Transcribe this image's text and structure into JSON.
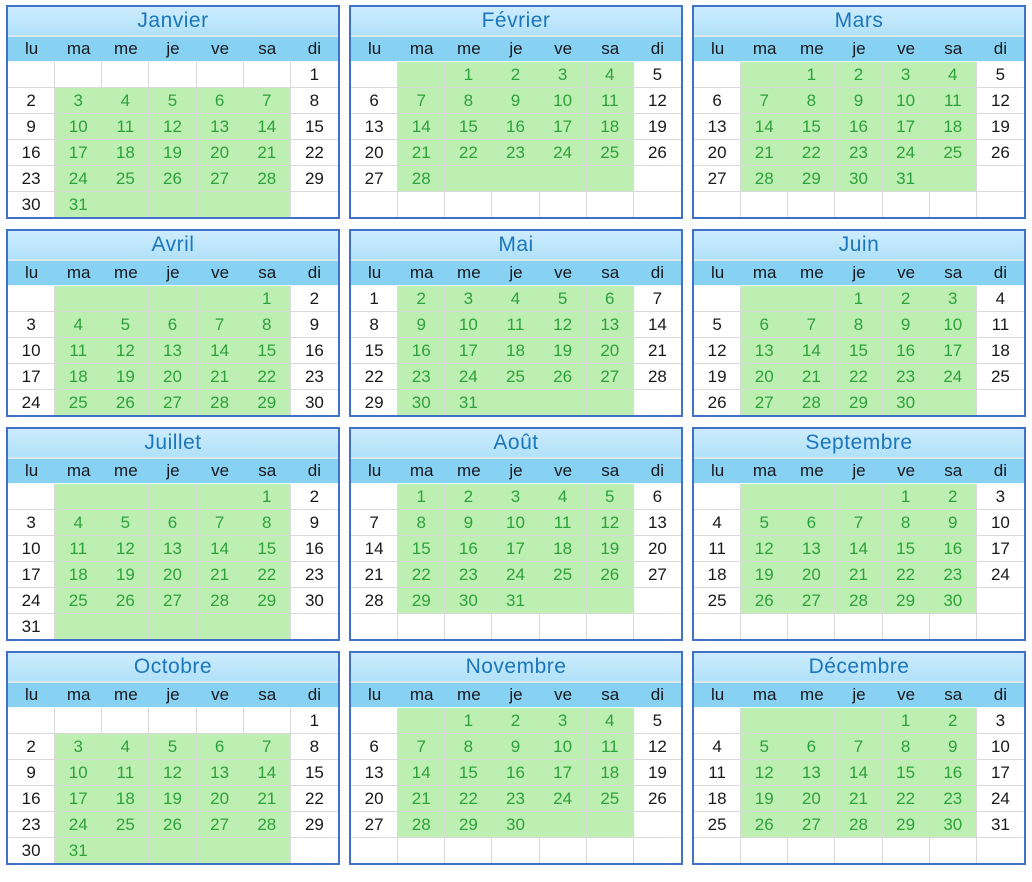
{
  "calendar": {
    "day_headers": [
      "lu",
      "ma",
      "me",
      "je",
      "ve",
      "sa",
      "di"
    ],
    "highlight_columns": [
      1,
      2,
      3,
      4,
      5
    ],
    "colors": {
      "month_border": "#4170c9",
      "title_bar_bg": "#bce5fa",
      "title_text": "#1b76bd",
      "weekday_bar_bg": "#87d1f3",
      "weekday_text": "#17171c",
      "date_text": "#191919",
      "highlight_bg": "#bdefb2",
      "highlight_text": "#2da23a",
      "grid_line": "#d9d9d9"
    },
    "months": [
      {
        "name": "Janvier",
        "slug": "janvier",
        "weeks": [
          {
            "days": [
              "",
              "",
              "",
              "",
              "",
              "",
              "1"
            ],
            "highlight": false
          },
          {
            "days": [
              "2",
              "3",
              "4",
              "5",
              "6",
              "7",
              "8"
            ],
            "highlight": true
          },
          {
            "days": [
              "9",
              "10",
              "11",
              "12",
              "13",
              "14",
              "15"
            ],
            "highlight": true
          },
          {
            "days": [
              "16",
              "17",
              "18",
              "19",
              "20",
              "21",
              "22"
            ],
            "highlight": true
          },
          {
            "days": [
              "23",
              "24",
              "25",
              "26",
              "27",
              "28",
              "29"
            ],
            "highlight": true
          },
          {
            "days": [
              "30",
              "31",
              "",
              "",
              "",
              "",
              ""
            ],
            "highlight": true
          }
        ]
      },
      {
        "name": "Février",
        "slug": "fevrier",
        "weeks": [
          {
            "days": [
              "",
              "",
              "1",
              "2",
              "3",
              "4",
              "5"
            ],
            "highlight": true
          },
          {
            "days": [
              "6",
              "7",
              "8",
              "9",
              "10",
              "11",
              "12"
            ],
            "highlight": true
          },
          {
            "days": [
              "13",
              "14",
              "15",
              "16",
              "17",
              "18",
              "19"
            ],
            "highlight": true
          },
          {
            "days": [
              "20",
              "21",
              "22",
              "23",
              "24",
              "25",
              "26"
            ],
            "highlight": true
          },
          {
            "days": [
              "27",
              "28",
              "",
              "",
              "",
              "",
              ""
            ],
            "highlight": true
          },
          {
            "days": [
              "",
              "",
              "",
              "",
              "",
              "",
              ""
            ],
            "highlight": false
          }
        ]
      },
      {
        "name": "Mars",
        "slug": "mars",
        "weeks": [
          {
            "days": [
              "",
              "",
              "1",
              "2",
              "3",
              "4",
              "5"
            ],
            "highlight": true
          },
          {
            "days": [
              "6",
              "7",
              "8",
              "9",
              "10",
              "11",
              "12"
            ],
            "highlight": true
          },
          {
            "days": [
              "13",
              "14",
              "15",
              "16",
              "17",
              "18",
              "19"
            ],
            "highlight": true
          },
          {
            "days": [
              "20",
              "21",
              "22",
              "23",
              "24",
              "25",
              "26"
            ],
            "highlight": true
          },
          {
            "days": [
              "27",
              "28",
              "29",
              "30",
              "31",
              "",
              ""
            ],
            "highlight": true
          },
          {
            "days": [
              "",
              "",
              "",
              "",
              "",
              "",
              ""
            ],
            "highlight": false
          }
        ]
      },
      {
        "name": "Avril",
        "slug": "avril",
        "weeks": [
          {
            "days": [
              "",
              "",
              "",
              "",
              "",
              "1",
              "2"
            ],
            "highlight": true
          },
          {
            "days": [
              "3",
              "4",
              "5",
              "6",
              "7",
              "8",
              "9"
            ],
            "highlight": true
          },
          {
            "days": [
              "10",
              "11",
              "12",
              "13",
              "14",
              "15",
              "16"
            ],
            "highlight": true
          },
          {
            "days": [
              "17",
              "18",
              "19",
              "20",
              "21",
              "22",
              "23"
            ],
            "highlight": true
          },
          {
            "days": [
              "24",
              "25",
              "26",
              "27",
              "28",
              "29",
              "30"
            ],
            "highlight": true
          }
        ]
      },
      {
        "name": "Mai",
        "slug": "mai",
        "weeks": [
          {
            "days": [
              "1",
              "2",
              "3",
              "4",
              "5",
              "6",
              "7"
            ],
            "highlight": true
          },
          {
            "days": [
              "8",
              "9",
              "10",
              "11",
              "12",
              "13",
              "14"
            ],
            "highlight": true
          },
          {
            "days": [
              "15",
              "16",
              "17",
              "18",
              "19",
              "20",
              "21"
            ],
            "highlight": true
          },
          {
            "days": [
              "22",
              "23",
              "24",
              "25",
              "26",
              "27",
              "28"
            ],
            "highlight": true
          },
          {
            "days": [
              "29",
              "30",
              "31",
              "",
              "",
              "",
              ""
            ],
            "highlight": true
          }
        ]
      },
      {
        "name": "Juin",
        "slug": "juin",
        "weeks": [
          {
            "days": [
              "",
              "",
              "",
              "1",
              "2",
              "3",
              "4"
            ],
            "highlight": true
          },
          {
            "days": [
              "5",
              "6",
              "7",
              "8",
              "9",
              "10",
              "11"
            ],
            "highlight": true
          },
          {
            "days": [
              "12",
              "13",
              "14",
              "15",
              "16",
              "17",
              "18"
            ],
            "highlight": true
          },
          {
            "days": [
              "19",
              "20",
              "21",
              "22",
              "23",
              "24",
              "25"
            ],
            "highlight": true
          },
          {
            "days": [
              "26",
              "27",
              "28",
              "29",
              "30",
              "",
              ""
            ],
            "highlight": true
          }
        ]
      },
      {
        "name": "Juillet",
        "slug": "juillet",
        "weeks": [
          {
            "days": [
              "",
              "",
              "",
              "",
              "",
              "1",
              "2"
            ],
            "highlight": true
          },
          {
            "days": [
              "3",
              "4",
              "5",
              "6",
              "7",
              "8",
              "9"
            ],
            "highlight": true
          },
          {
            "days": [
              "10",
              "11",
              "12",
              "13",
              "14",
              "15",
              "16"
            ],
            "highlight": true
          },
          {
            "days": [
              "17",
              "18",
              "19",
              "20",
              "21",
              "22",
              "23"
            ],
            "highlight": true
          },
          {
            "days": [
              "24",
              "25",
              "26",
              "27",
              "28",
              "29",
              "30"
            ],
            "highlight": true
          },
          {
            "days": [
              "31",
              "",
              "",
              "",
              "",
              "",
              ""
            ],
            "highlight": true
          }
        ]
      },
      {
        "name": "Août",
        "slug": "aout",
        "weeks": [
          {
            "days": [
              "",
              "1",
              "2",
              "3",
              "4",
              "5",
              "6"
            ],
            "highlight": true
          },
          {
            "days": [
              "7",
              "8",
              "9",
              "10",
              "11",
              "12",
              "13"
            ],
            "highlight": true
          },
          {
            "days": [
              "14",
              "15",
              "16",
              "17",
              "18",
              "19",
              "20"
            ],
            "highlight": true
          },
          {
            "days": [
              "21",
              "22",
              "23",
              "24",
              "25",
              "26",
              "27"
            ],
            "highlight": true
          },
          {
            "days": [
              "28",
              "29",
              "30",
              "31",
              "",
              "",
              ""
            ],
            "highlight": true
          },
          {
            "days": [
              "",
              "",
              "",
              "",
              "",
              "",
              ""
            ],
            "highlight": false
          }
        ]
      },
      {
        "name": "Septembre",
        "slug": "septembre",
        "weeks": [
          {
            "days": [
              "",
              "",
              "",
              "",
              "1",
              "2",
              "3"
            ],
            "highlight": true
          },
          {
            "days": [
              "4",
              "5",
              "6",
              "7",
              "8",
              "9",
              "10"
            ],
            "highlight": true
          },
          {
            "days": [
              "11",
              "12",
              "13",
              "14",
              "15",
              "16",
              "17"
            ],
            "highlight": true
          },
          {
            "days": [
              "18",
              "19",
              "20",
              "21",
              "22",
              "23",
              "24"
            ],
            "highlight": true
          },
          {
            "days": [
              "25",
              "26",
              "27",
              "28",
              "29",
              "30",
              ""
            ],
            "highlight": true
          },
          {
            "days": [
              "",
              "",
              "",
              "",
              "",
              "",
              ""
            ],
            "highlight": false
          }
        ]
      },
      {
        "name": "Octobre",
        "slug": "octobre",
        "weeks": [
          {
            "days": [
              "",
              "",
              "",
              "",
              "",
              "",
              "1"
            ],
            "highlight": false
          },
          {
            "days": [
              "2",
              "3",
              "4",
              "5",
              "6",
              "7",
              "8"
            ],
            "highlight": true
          },
          {
            "days": [
              "9",
              "10",
              "11",
              "12",
              "13",
              "14",
              "15"
            ],
            "highlight": true
          },
          {
            "days": [
              "16",
              "17",
              "18",
              "19",
              "20",
              "21",
              "22"
            ],
            "highlight": true
          },
          {
            "days": [
              "23",
              "24",
              "25",
              "26",
              "27",
              "28",
              "29"
            ],
            "highlight": true
          },
          {
            "days": [
              "30",
              "31",
              "",
              "",
              "",
              "",
              ""
            ],
            "highlight": true
          }
        ]
      },
      {
        "name": "Novembre",
        "slug": "novembre",
        "weeks": [
          {
            "days": [
              "",
              "",
              "1",
              "2",
              "3",
              "4",
              "5"
            ],
            "highlight": true
          },
          {
            "days": [
              "6",
              "7",
              "8",
              "9",
              "10",
              "11",
              "12"
            ],
            "highlight": true
          },
          {
            "days": [
              "13",
              "14",
              "15",
              "16",
              "17",
              "18",
              "19"
            ],
            "highlight": true
          },
          {
            "days": [
              "20",
              "21",
              "22",
              "23",
              "24",
              "25",
              "26"
            ],
            "highlight": true
          },
          {
            "days": [
              "27",
              "28",
              "29",
              "30",
              "",
              "",
              ""
            ],
            "highlight": true
          },
          {
            "days": [
              "",
              "",
              "",
              "",
              "",
              "",
              ""
            ],
            "highlight": false
          }
        ]
      },
      {
        "name": "Décembre",
        "slug": "decembre",
        "weeks": [
          {
            "days": [
              "",
              "",
              "",
              "",
              "1",
              "2",
              "3"
            ],
            "highlight": true
          },
          {
            "days": [
              "4",
              "5",
              "6",
              "7",
              "8",
              "9",
              "10"
            ],
            "highlight": true
          },
          {
            "days": [
              "11",
              "12",
              "13",
              "14",
              "15",
              "16",
              "17"
            ],
            "highlight": true
          },
          {
            "days": [
              "18",
              "19",
              "20",
              "21",
              "22",
              "23",
              "24"
            ],
            "highlight": true
          },
          {
            "days": [
              "25",
              "26",
              "27",
              "28",
              "29",
              "30",
              "31"
            ],
            "highlight": true
          },
          {
            "days": [
              "",
              "",
              "",
              "",
              "",
              "",
              ""
            ],
            "highlight": false
          }
        ]
      }
    ]
  }
}
